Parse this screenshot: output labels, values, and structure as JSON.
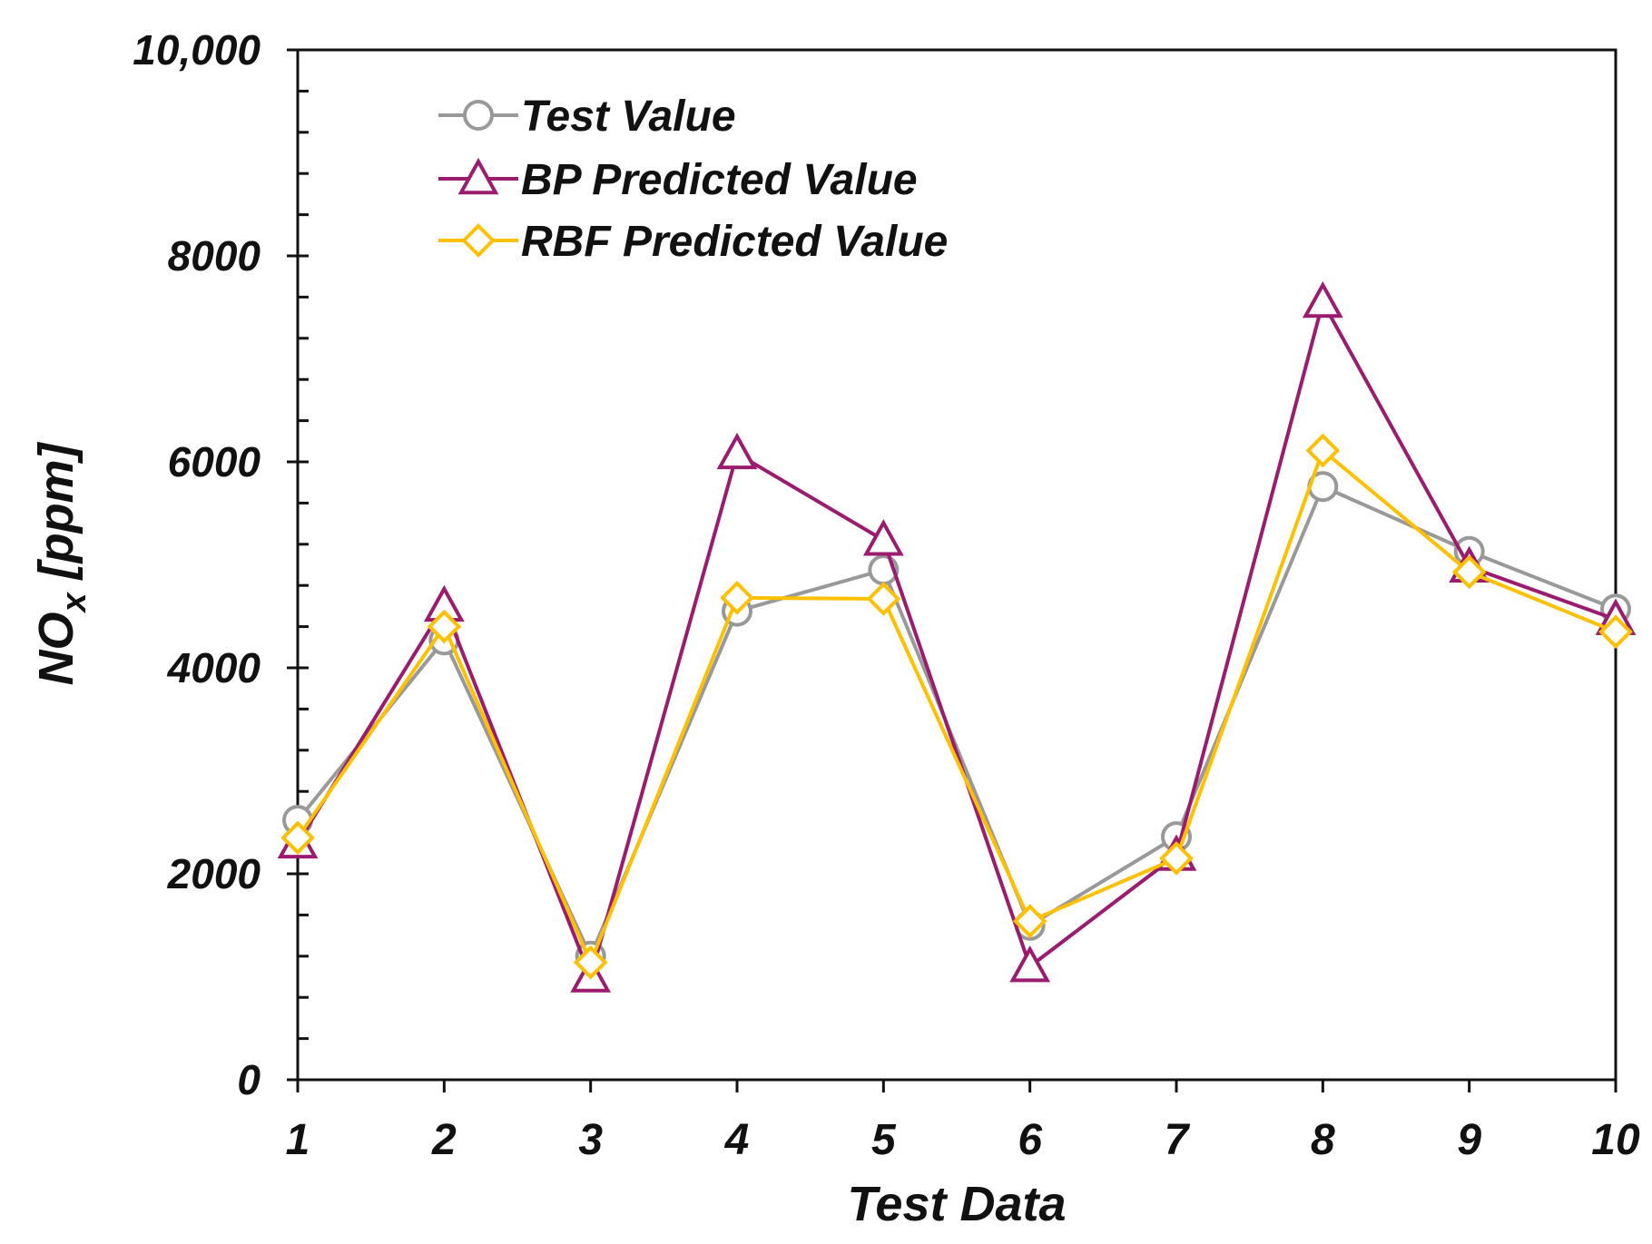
{
  "chart_data": {
    "type": "line",
    "title": "",
    "xlabel": "Test Data",
    "ylabel_main": "NO",
    "ylabel_sub": "x",
    "ylabel_unit": " [ppm]",
    "categories": [
      1,
      2,
      3,
      4,
      5,
      6,
      7,
      8,
      9,
      10
    ],
    "x_tick_labels": [
      "1",
      "2",
      "3",
      "4",
      "5",
      "6",
      "7",
      "8",
      "9",
      "10"
    ],
    "ylim": [
      0,
      10000
    ],
    "y_major_ticks": [
      0,
      2000,
      4000,
      6000,
      8000,
      10000
    ],
    "y_tick_labels": [
      "0",
      "2000",
      "4000",
      "6000",
      "8000",
      "10,000"
    ],
    "y_minor_step": 400,
    "grid": false,
    "legend_position": "top-left",
    "series": [
      {
        "name": "Test Value",
        "color": "#999999",
        "marker": "circle",
        "values": [
          2520,
          4270,
          1200,
          4550,
          4950,
          1500,
          2360,
          5760,
          5130,
          4570
        ]
      },
      {
        "name": "BP Predicted Value",
        "color": "#9B1B6E",
        "marker": "triangle",
        "values": [
          2300,
          4600,
          1000,
          6080,
          5240,
          1100,
          2180,
          7550,
          4980,
          4470
        ]
      },
      {
        "name": "RBF Predicted Value",
        "color": "#FFC000",
        "marker": "diamond",
        "values": [
          2350,
          4400,
          1140,
          4680,
          4670,
          1540,
          2150,
          6110,
          4930,
          4350
        ]
      }
    ]
  }
}
